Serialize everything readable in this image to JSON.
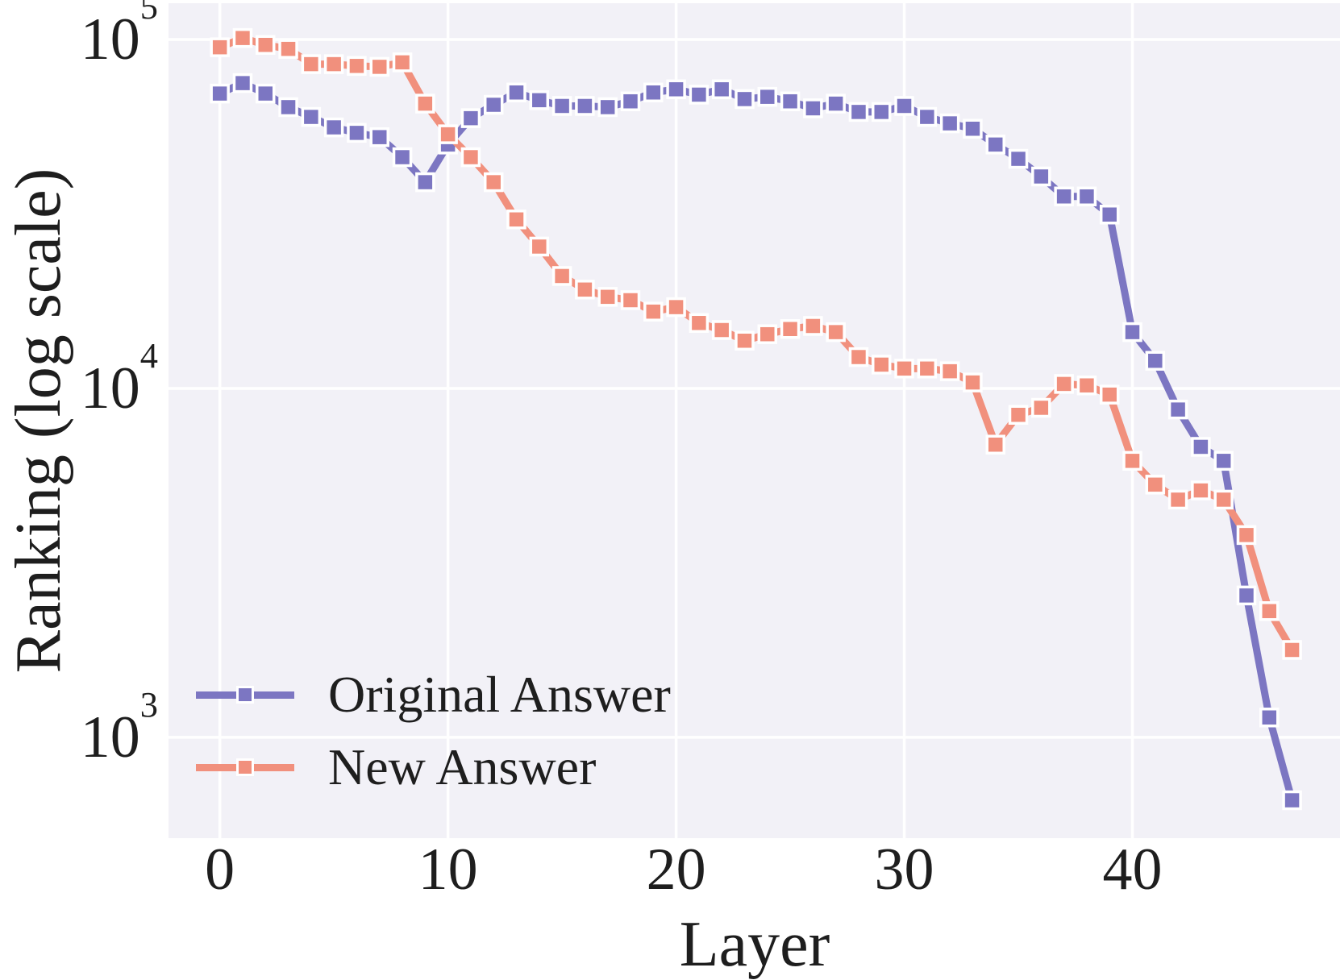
{
  "figure": {
    "background": "#ffffff",
    "plot_background": "#f2f1f7",
    "grid_color": "#ffffff",
    "text_color": "#1e1e1e"
  },
  "axes": {
    "x_label": "Layer",
    "y_label": "Ranking (log scale)",
    "x_tick_labels": [
      "0",
      "10",
      "20",
      "30",
      "40"
    ],
    "y_tick_labels": [
      {
        "mantissa": "10",
        "exponent": "5"
      },
      {
        "mantissa": "10",
        "exponent": "4"
      },
      {
        "mantissa": "10",
        "exponent": "3"
      }
    ]
  },
  "legend": {
    "entries": [
      {
        "label": "Original Answer",
        "color": "#7c76c2"
      },
      {
        "label": "New Answer",
        "color": "#f1907d"
      }
    ]
  },
  "chart_data": {
    "type": "line",
    "title": "",
    "xlabel": "Layer",
    "ylabel": "Ranking (log scale)",
    "yscale": "log",
    "grid": true,
    "legend_position": "lower left",
    "marker": "square",
    "linestyle": "dashed-with-markers",
    "xlim": [
      -2.25,
      49.1
    ],
    "ylim_log10": [
      2.711,
      5.104
    ],
    "x_ticks": [
      0,
      10,
      20,
      30,
      40
    ],
    "y_ticks": [
      100000,
      10000,
      1000
    ],
    "x": [
      0,
      1,
      2,
      3,
      4,
      5,
      6,
      7,
      8,
      9,
      10,
      11,
      12,
      13,
      14,
      15,
      16,
      17,
      18,
      19,
      20,
      21,
      22,
      23,
      24,
      25,
      26,
      27,
      28,
      29,
      30,
      31,
      32,
      33,
      34,
      35,
      36,
      37,
      38,
      39,
      40,
      41,
      42,
      43,
      44,
      45,
      46,
      47
    ],
    "series": [
      {
        "name": "Original Answer",
        "color": "#7c76c2",
        "values": [
          70000,
          75000,
          70000,
          64000,
          60000,
          56000,
          54000,
          52500,
          46000,
          39000,
          50000,
          59500,
          65000,
          70500,
          67000,
          64500,
          64500,
          64000,
          66500,
          70500,
          72000,
          69500,
          72000,
          67500,
          68500,
          66500,
          63500,
          65500,
          62000,
          62000,
          64500,
          60000,
          57500,
          55500,
          50000,
          45500,
          40500,
          35500,
          35500,
          31500,
          14500,
          12000,
          8700,
          6800,
          6200,
          2550,
          1140,
          660
        ]
      },
      {
        "name": "New Answer",
        "color": "#f1907d",
        "values": [
          95000,
          101000,
          96500,
          94000,
          85000,
          85000,
          84000,
          83500,
          86000,
          65500,
          53500,
          46000,
          39000,
          30500,
          25500,
          21000,
          19200,
          18300,
          17900,
          16600,
          17100,
          15400,
          14700,
          13700,
          14300,
          14800,
          15100,
          14500,
          12300,
          11700,
          11400,
          11400,
          11200,
          10400,
          6900,
          8400,
          8800,
          10300,
          10200,
          9600,
          6200,
          5300,
          4800,
          5100,
          4800,
          3800,
          2300,
          1780
        ]
      }
    ]
  }
}
